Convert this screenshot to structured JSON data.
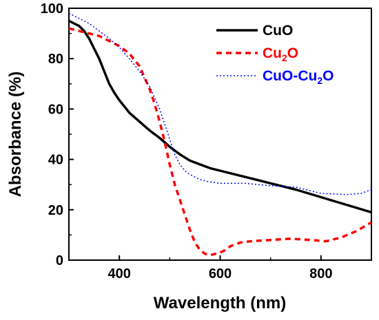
{
  "chart_data": {
    "type": "line",
    "title": "",
    "xlabel": "Wavelength (nm)",
    "ylabel": "Absorbance (%)",
    "xlim": [
      300,
      900
    ],
    "ylim": [
      0,
      100
    ],
    "xticks": [
      400,
      600,
      800
    ],
    "yticks": [
      0,
      20,
      40,
      60,
      80,
      100
    ],
    "xtick_labels": [
      "400",
      "600",
      "800"
    ],
    "ytick_labels": [
      "0",
      "20",
      "40",
      "60",
      "80",
      "100"
    ],
    "grid": false,
    "legend_position": "top-right",
    "series": [
      {
        "key": "cuo",
        "legend": {
          "main": "CuO",
          "sub": "",
          "tail": ""
        },
        "color": "#000000",
        "style": "solid",
        "x": [
          300,
          310,
          320,
          330,
          340,
          350,
          360,
          370,
          380,
          390,
          400,
          410,
          420,
          440,
          460,
          480,
          500,
          520,
          540,
          560,
          580,
          600,
          650,
          700,
          750,
          800,
          850,
          900
        ],
        "y": [
          95,
          94,
          93,
          91,
          88,
          84,
          80,
          75,
          70,
          66.5,
          63.5,
          61,
          58.5,
          55,
          51.5,
          48.5,
          45,
          42,
          39.5,
          38,
          36.5,
          35.5,
          33,
          30.5,
          28,
          25,
          22,
          19
        ]
      },
      {
        "key": "cu2o",
        "legend": {
          "main": "Cu",
          "sub": "2",
          "tail": "O"
        },
        "color": "#ff0000",
        "style": "dashed",
        "x": [
          300,
          320,
          340,
          360,
          380,
          400,
          420,
          440,
          460,
          470,
          480,
          490,
          500,
          510,
          520,
          530,
          540,
          550,
          560,
          570,
          580,
          590,
          600,
          610,
          620,
          640,
          660,
          700,
          740,
          780,
          810,
          840,
          870,
          900
        ],
        "y": [
          92,
          91,
          90,
          89,
          87,
          85,
          82,
          77,
          68,
          62,
          55,
          47,
          38,
          30,
          24,
          18,
          12,
          7,
          4,
          2.5,
          2,
          2.5,
          3,
          4,
          5.5,
          7,
          7.5,
          8,
          8.5,
          8,
          7.5,
          9,
          11.5,
          15
        ]
      },
      {
        "key": "cuo_cu2o",
        "legend": {
          "main": "CuO-Cu",
          "sub": "2",
          "tail": "O"
        },
        "color": "#0000ff",
        "style": "dotted",
        "x": [
          300,
          320,
          340,
          360,
          380,
          400,
          420,
          440,
          460,
          480,
          490,
          500,
          510,
          520,
          530,
          540,
          560,
          580,
          600,
          650,
          700,
          750,
          800,
          850,
          880,
          900
        ],
        "y": [
          98,
          96,
          94,
          91,
          88,
          84.5,
          80,
          75,
          69,
          60,
          54,
          48,
          42,
          38,
          35.5,
          34,
          32,
          31,
          30.5,
          30.5,
          29.5,
          29,
          26.5,
          26,
          26.5,
          28
        ]
      }
    ]
  }
}
